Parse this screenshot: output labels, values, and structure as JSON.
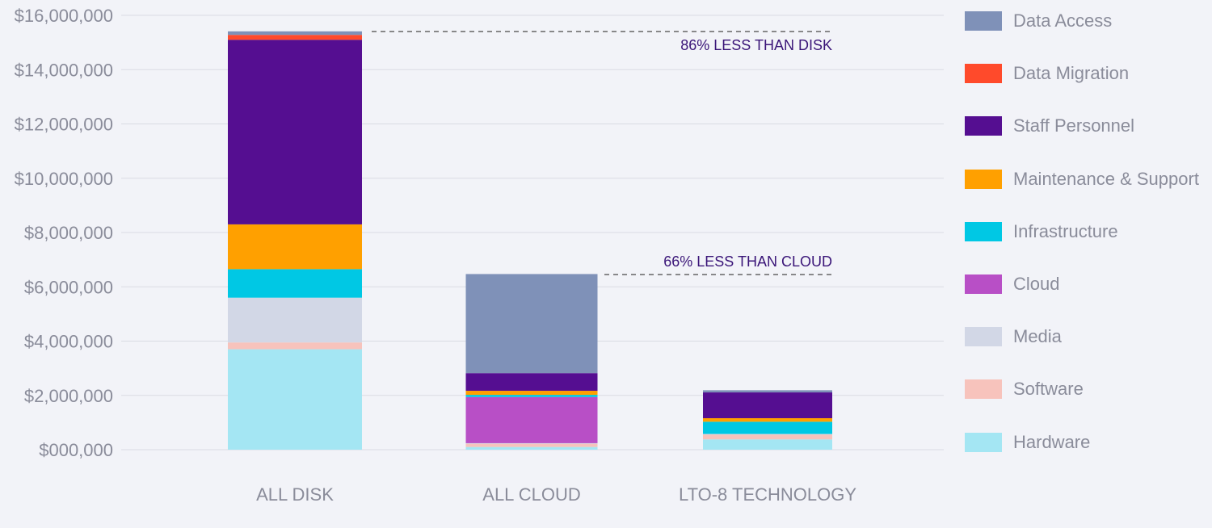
{
  "chart_data": {
    "type": "bar",
    "stacked": true,
    "categories": [
      "ALL DISK",
      "ALL CLOUD",
      "LTO-8 TECHNOLOGY"
    ],
    "ylim": [
      0,
      16000000
    ],
    "yticks": [
      {
        "value": 0,
        "label": "$000,000"
      },
      {
        "value": 2000000,
        "label": "$2,000,000"
      },
      {
        "value": 4000000,
        "label": "$4,000,000"
      },
      {
        "value": 6000000,
        "label": "$6,000,000"
      },
      {
        "value": 8000000,
        "label": "$8,000,000"
      },
      {
        "value": 10000000,
        "label": "$10,000,000"
      },
      {
        "value": 12000000,
        "label": "$12,000,000"
      },
      {
        "value": 14000000,
        "label": "$14,000,000"
      },
      {
        "value": 16000000,
        "label": "$16,000,000"
      }
    ],
    "grid": true,
    "legend_position": "right",
    "series": [
      {
        "name": "Hardware",
        "color": "#a4e6f3",
        "values": [
          3700000,
          100000,
          380000
        ]
      },
      {
        "name": "Software",
        "color": "#f7c3bc",
        "values": [
          250000,
          120000,
          180000
        ]
      },
      {
        "name": "Media",
        "color": "#d2d7e6",
        "values": [
          1650000,
          20000,
          20000
        ]
      },
      {
        "name": "Cloud",
        "color": "#b84fc6",
        "values": [
          0,
          1700000,
          0
        ]
      },
      {
        "name": "Infrastructure",
        "color": "#00c8e4",
        "values": [
          1050000,
          80000,
          450000
        ]
      },
      {
        "name": "Maintenance & Support",
        "color": "#ffa000",
        "values": [
          1650000,
          150000,
          130000
        ]
      },
      {
        "name": "Staff Personnel",
        "color": "#550e91",
        "values": [
          6800000,
          650000,
          950000
        ]
      },
      {
        "name": "Data Migration",
        "color": "#ff4a2b",
        "values": [
          180000,
          0,
          0
        ]
      },
      {
        "name": "Data Access",
        "color": "#7f91b8",
        "values": [
          130000,
          3650000,
          80000
        ]
      }
    ],
    "annotations": [
      {
        "text": "86% LESS THAN DISK",
        "value": 15400000
      },
      {
        "text": "66% LESS THAN CLOUD",
        "value": 6450000
      }
    ],
    "annotation_color": "#3a1578"
  }
}
